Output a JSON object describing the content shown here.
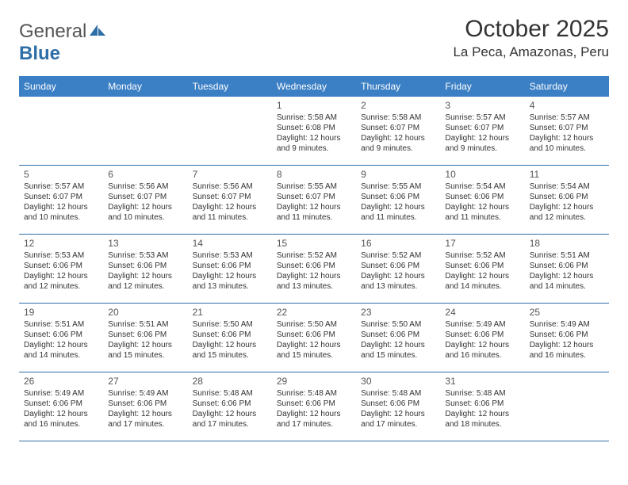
{
  "header": {
    "logo_general": "General",
    "logo_blue": "Blue",
    "month_title": "October 2025",
    "location": "La Peca, Amazonas, Peru"
  },
  "colors": {
    "header_bg": "#3b7fc4",
    "header_text": "#ffffff",
    "border": "#2f6fa7",
    "logo_gray": "#555555",
    "logo_blue": "#2f6fa7"
  },
  "days_of_week": [
    "Sunday",
    "Monday",
    "Tuesday",
    "Wednesday",
    "Thursday",
    "Friday",
    "Saturday"
  ],
  "blank_leading": 3,
  "days": [
    {
      "n": "1",
      "sunrise": "5:58 AM",
      "sunset": "6:08 PM",
      "daylight": "12 hours and 9 minutes."
    },
    {
      "n": "2",
      "sunrise": "5:58 AM",
      "sunset": "6:07 PM",
      "daylight": "12 hours and 9 minutes."
    },
    {
      "n": "3",
      "sunrise": "5:57 AM",
      "sunset": "6:07 PM",
      "daylight": "12 hours and 9 minutes."
    },
    {
      "n": "4",
      "sunrise": "5:57 AM",
      "sunset": "6:07 PM",
      "daylight": "12 hours and 10 minutes."
    },
    {
      "n": "5",
      "sunrise": "5:57 AM",
      "sunset": "6:07 PM",
      "daylight": "12 hours and 10 minutes."
    },
    {
      "n": "6",
      "sunrise": "5:56 AM",
      "sunset": "6:07 PM",
      "daylight": "12 hours and 10 minutes."
    },
    {
      "n": "7",
      "sunrise": "5:56 AM",
      "sunset": "6:07 PM",
      "daylight": "12 hours and 11 minutes."
    },
    {
      "n": "8",
      "sunrise": "5:55 AM",
      "sunset": "6:07 PM",
      "daylight": "12 hours and 11 minutes."
    },
    {
      "n": "9",
      "sunrise": "5:55 AM",
      "sunset": "6:06 PM",
      "daylight": "12 hours and 11 minutes."
    },
    {
      "n": "10",
      "sunrise": "5:54 AM",
      "sunset": "6:06 PM",
      "daylight": "12 hours and 11 minutes."
    },
    {
      "n": "11",
      "sunrise": "5:54 AM",
      "sunset": "6:06 PM",
      "daylight": "12 hours and 12 minutes."
    },
    {
      "n": "12",
      "sunrise": "5:53 AM",
      "sunset": "6:06 PM",
      "daylight": "12 hours and 12 minutes."
    },
    {
      "n": "13",
      "sunrise": "5:53 AM",
      "sunset": "6:06 PM",
      "daylight": "12 hours and 12 minutes."
    },
    {
      "n": "14",
      "sunrise": "5:53 AM",
      "sunset": "6:06 PM",
      "daylight": "12 hours and 13 minutes."
    },
    {
      "n": "15",
      "sunrise": "5:52 AM",
      "sunset": "6:06 PM",
      "daylight": "12 hours and 13 minutes."
    },
    {
      "n": "16",
      "sunrise": "5:52 AM",
      "sunset": "6:06 PM",
      "daylight": "12 hours and 13 minutes."
    },
    {
      "n": "17",
      "sunrise": "5:52 AM",
      "sunset": "6:06 PM",
      "daylight": "12 hours and 14 minutes."
    },
    {
      "n": "18",
      "sunrise": "5:51 AM",
      "sunset": "6:06 PM",
      "daylight": "12 hours and 14 minutes."
    },
    {
      "n": "19",
      "sunrise": "5:51 AM",
      "sunset": "6:06 PM",
      "daylight": "12 hours and 14 minutes."
    },
    {
      "n": "20",
      "sunrise": "5:51 AM",
      "sunset": "6:06 PM",
      "daylight": "12 hours and 15 minutes."
    },
    {
      "n": "21",
      "sunrise": "5:50 AM",
      "sunset": "6:06 PM",
      "daylight": "12 hours and 15 minutes."
    },
    {
      "n": "22",
      "sunrise": "5:50 AM",
      "sunset": "6:06 PM",
      "daylight": "12 hours and 15 minutes."
    },
    {
      "n": "23",
      "sunrise": "5:50 AM",
      "sunset": "6:06 PM",
      "daylight": "12 hours and 15 minutes."
    },
    {
      "n": "24",
      "sunrise": "5:49 AM",
      "sunset": "6:06 PM",
      "daylight": "12 hours and 16 minutes."
    },
    {
      "n": "25",
      "sunrise": "5:49 AM",
      "sunset": "6:06 PM",
      "daylight": "12 hours and 16 minutes."
    },
    {
      "n": "26",
      "sunrise": "5:49 AM",
      "sunset": "6:06 PM",
      "daylight": "12 hours and 16 minutes."
    },
    {
      "n": "27",
      "sunrise": "5:49 AM",
      "sunset": "6:06 PM",
      "daylight": "12 hours and 17 minutes."
    },
    {
      "n": "28",
      "sunrise": "5:48 AM",
      "sunset": "6:06 PM",
      "daylight": "12 hours and 17 minutes."
    },
    {
      "n": "29",
      "sunrise": "5:48 AM",
      "sunset": "6:06 PM",
      "daylight": "12 hours and 17 minutes."
    },
    {
      "n": "30",
      "sunrise": "5:48 AM",
      "sunset": "6:06 PM",
      "daylight": "12 hours and 17 minutes."
    },
    {
      "n": "31",
      "sunrise": "5:48 AM",
      "sunset": "6:06 PM",
      "daylight": "12 hours and 18 minutes."
    }
  ],
  "labels": {
    "sunrise": "Sunrise: ",
    "sunset": "Sunset: ",
    "daylight": "Daylight: "
  }
}
